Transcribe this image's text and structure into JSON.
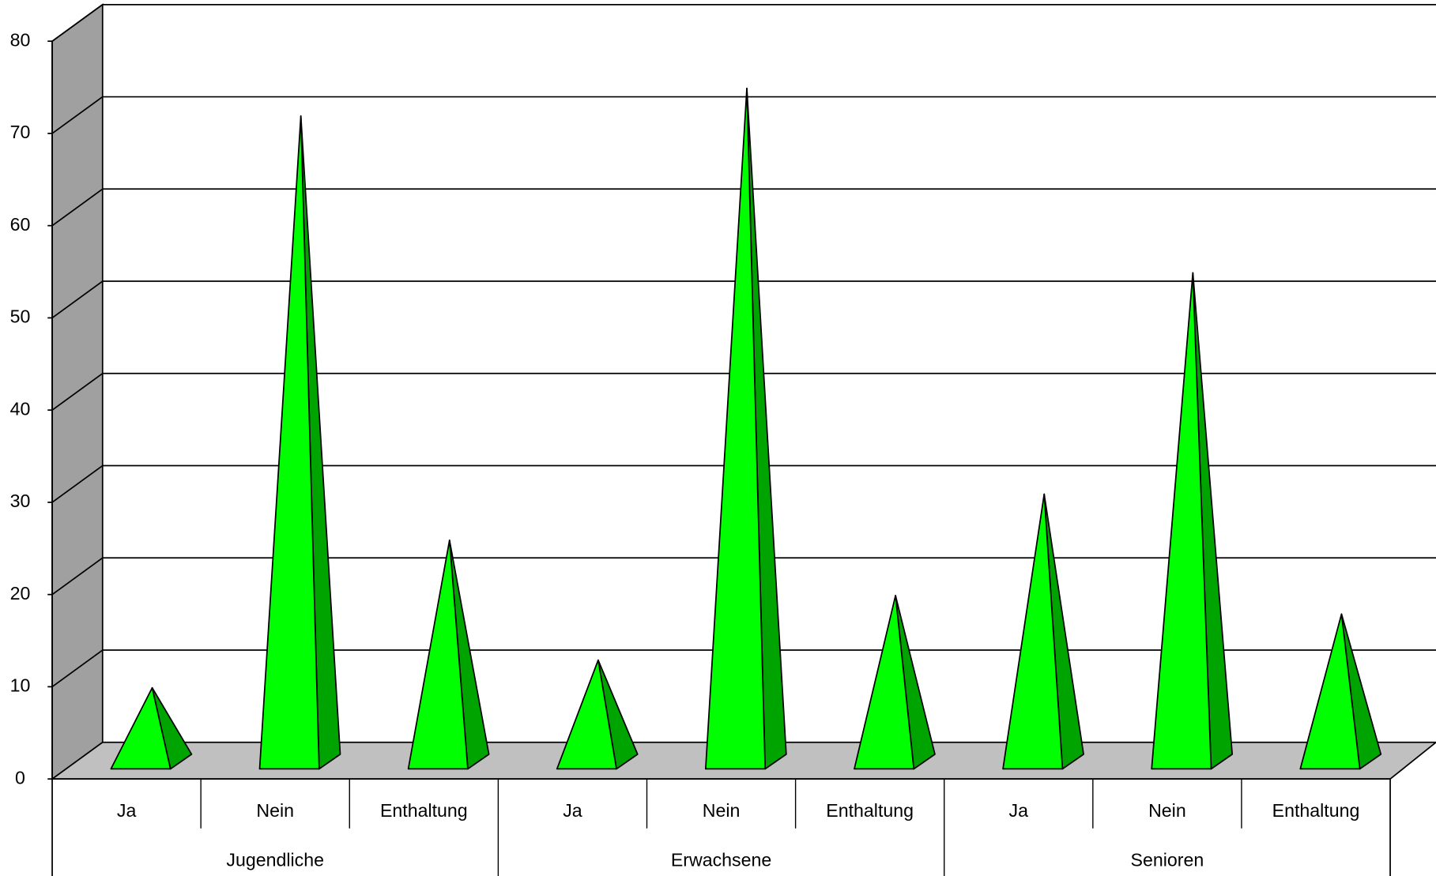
{
  "chart_data": {
    "type": "pyramid",
    "categories": [
      "Ja",
      "Nein",
      "Enthaltung",
      "Ja",
      "Nein",
      "Enthaltung",
      "Ja",
      "Nein",
      "Enthaltung"
    ],
    "groups": [
      "Jugendliche",
      "Erwachsene",
      "Senioren"
    ],
    "values": [
      8,
      70,
      24,
      11,
      73,
      18,
      29,
      53,
      16
    ],
    "color": "#00ff00",
    "side_color": "#00a400",
    "ylim": [
      0,
      80
    ],
    "yticks": [
      0,
      10,
      20,
      30,
      40,
      50,
      60,
      70,
      80
    ],
    "grid": true
  }
}
